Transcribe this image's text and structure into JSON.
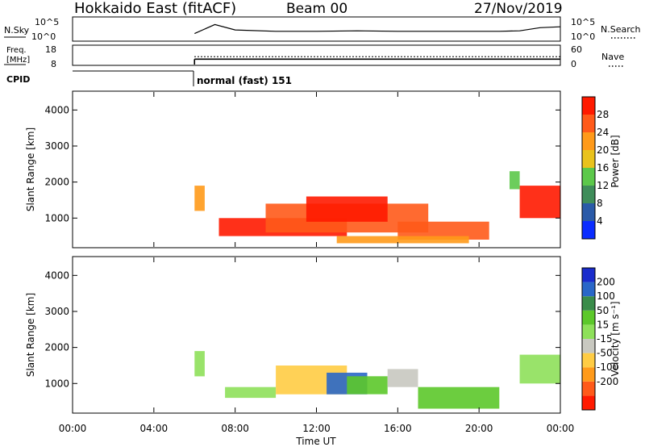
{
  "header": {
    "title": "Hokkaido East (fitACF)",
    "beam": "Beam 00",
    "date": "27/Nov/2019"
  },
  "noise_panel": {
    "left_label": "N.Sky",
    "right_label": "N.Search",
    "left_ticks": [
      "10^5",
      "10^0"
    ],
    "right_ticks": [
      "10^5",
      "10^0"
    ]
  },
  "freq_panel": {
    "left_label_line1": "Freq.",
    "left_label_line2": "[MHz]",
    "left_ticks": [
      "18",
      "8"
    ],
    "right_label": "Nave",
    "right_ticks": [
      "60",
      "0"
    ]
  },
  "cpid": {
    "label": "CPID",
    "mode_text": "normal (fast) 151"
  },
  "x_axis": {
    "label": "Time UT",
    "ticks": [
      "00:00",
      "04:00",
      "08:00",
      "12:00",
      "16:00",
      "20:00",
      "00:00"
    ]
  },
  "power_panel": {
    "ylabel": "Slant Range [km]",
    "yticks": [
      "1000",
      "2000",
      "3000",
      "4000"
    ],
    "colorbar_label": "Power [dB]",
    "colorbar_ticks": [
      "4",
      "8",
      "12",
      "16",
      "20",
      "24",
      "28"
    ],
    "colors": [
      "#0a2cff",
      "#2a5aa8",
      "#3f8d5a",
      "#5cc84a",
      "#e9c21c",
      "#ff9a1a",
      "#ff5a1a",
      "#ff1a00"
    ]
  },
  "velocity_panel": {
    "ylabel": "Slant Range [km]",
    "yticks": [
      "1000",
      "2000",
      "3000",
      "4000"
    ],
    "colorbar_label": "Velocity [m s⁻¹]",
    "colorbar_ticks": [
      "200",
      "100",
      "50",
      "15",
      "-15",
      "-50",
      "-100",
      "-200"
    ],
    "colors": [
      "#1a2ccc",
      "#2a67c8",
      "#3a8c4a",
      "#5cc82a",
      "#8ee05a",
      "#c8c8c0",
      "#ffcc44",
      "#ff9a1a",
      "#ff5a1a",
      "#ff1a00"
    ]
  },
  "chart_data": [
    {
      "type": "line",
      "name": "noise",
      "x_hours": [
        6,
        7,
        8,
        10,
        12,
        14,
        16,
        18,
        20,
        21,
        22,
        23,
        24
      ],
      "values": [
        1.5,
        3.5,
        2.3,
        2.0,
        2.0,
        2.1,
        2.0,
        2.0,
        2.0,
        2.0,
        2.1,
        2.8,
        3.0
      ],
      "xlim": [
        0,
        24
      ]
    },
    {
      "type": "line",
      "name": "frequency",
      "x_hours": [
        6,
        24
      ],
      "values": [
        10.9,
        10.9
      ],
      "ylim": [
        8,
        18
      ],
      "xlim": [
        0,
        24
      ]
    },
    {
      "type": "heatmap",
      "name": "power",
      "units": "dB",
      "xlim": [
        0,
        24
      ],
      "ylim": [
        200,
        4500
      ],
      "clim": [
        0,
        30
      ],
      "regions": [
        {
          "t0": 6.0,
          "t1": 6.5,
          "r0": 1200,
          "r1": 1900,
          "value": 22
        },
        {
          "t0": 7.2,
          "t1": 13.5,
          "r0": 500,
          "r1": 1000,
          "value": 29
        },
        {
          "t0": 9.5,
          "t1": 17.5,
          "r0": 600,
          "r1": 1400,
          "value": 26
        },
        {
          "t0": 11.5,
          "t1": 15.5,
          "r0": 900,
          "r1": 1600,
          "value": 28
        },
        {
          "t0": 16.0,
          "t1": 20.5,
          "r0": 400,
          "r1": 900,
          "value": 24
        },
        {
          "t0": 13.0,
          "t1": 19.5,
          "r0": 300,
          "r1": 500,
          "value": 20
        },
        {
          "t0": 22.0,
          "t1": 24.0,
          "r0": 1000,
          "r1": 1900,
          "value": 28
        },
        {
          "t0": 21.5,
          "t1": 22.0,
          "r0": 1800,
          "r1": 2300,
          "value": 14
        }
      ]
    },
    {
      "type": "heatmap",
      "name": "velocity",
      "units": "m s-1",
      "xlim": [
        0,
        24
      ],
      "ylim": [
        200,
        4500
      ],
      "clim": [
        -200,
        200
      ],
      "regions": [
        {
          "t0": 6.0,
          "t1": 6.5,
          "r0": 1200,
          "r1": 1900,
          "value": 0
        },
        {
          "t0": 7.5,
          "t1": 10.0,
          "r0": 600,
          "r1": 900,
          "value": 30
        },
        {
          "t0": 10.0,
          "t1": 13.5,
          "r0": 700,
          "r1": 1500,
          "value": -70
        },
        {
          "t0": 12.5,
          "t1": 14.5,
          "r0": 700,
          "r1": 1300,
          "value": 150
        },
        {
          "t0": 13.5,
          "t1": 15.5,
          "r0": 700,
          "r1": 1200,
          "value": 60
        },
        {
          "t0": 15.5,
          "t1": 17.0,
          "r0": 900,
          "r1": 1400,
          "value": -30
        },
        {
          "t0": 17.0,
          "t1": 21.0,
          "r0": 300,
          "r1": 900,
          "value": 40
        },
        {
          "t0": 22.0,
          "t1": 24.0,
          "r0": 1000,
          "r1": 1800,
          "value": 0
        }
      ]
    }
  ]
}
